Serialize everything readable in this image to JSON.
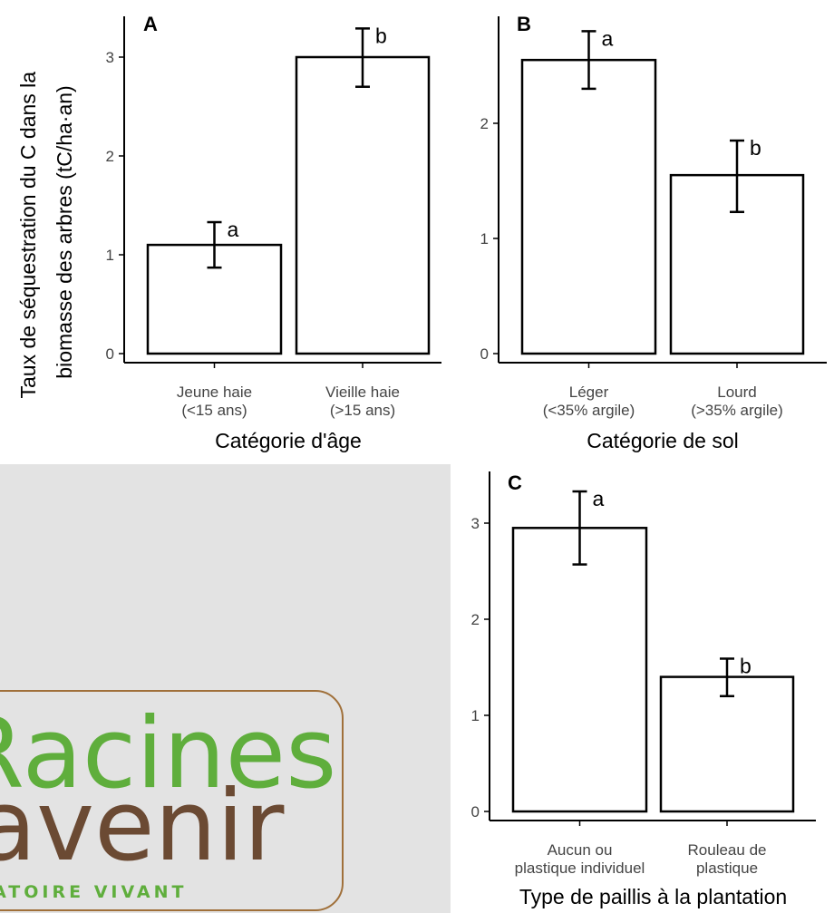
{
  "y_axis_title_lines": [
    "Taux de séquestration du C dans la",
    "biomasse des arbres (tC/ha·an)"
  ],
  "chart_data": [
    {
      "panel": "A",
      "type": "bar",
      "categories": [
        [
          "Jeune haie",
          "(<15 ans)"
        ],
        [
          "Vieille haie",
          "(>15 ans)"
        ]
      ],
      "values": [
        1.1,
        3.0
      ],
      "error_low": [
        0.87,
        2.7
      ],
      "error_high": [
        1.33,
        3.29
      ],
      "significance": [
        "a",
        "b"
      ],
      "xlabel": "Catégorie d'âge",
      "ylim": [
        0,
        3.3
      ],
      "yticks": [
        0,
        1,
        2,
        3
      ],
      "grid": false
    },
    {
      "panel": "B",
      "type": "bar",
      "categories": [
        [
          "Léger",
          "(<35% argile)"
        ],
        [
          "Lourd",
          "(>35% argile)"
        ]
      ],
      "values": [
        2.55,
        1.55
      ],
      "error_low": [
        2.3,
        1.23
      ],
      "error_high": [
        2.8,
        1.85
      ],
      "significance": [
        "a",
        "b"
      ],
      "xlabel": "Catégorie de sol",
      "ylim": [
        0,
        2.8
      ],
      "yticks": [
        0,
        1,
        2
      ],
      "grid": false
    },
    {
      "panel": "C",
      "type": "bar",
      "categories": [
        [
          "Aucun ou",
          "plastique individuel"
        ],
        [
          "Rouleau de",
          "plastique"
        ]
      ],
      "values": [
        2.95,
        1.4
      ],
      "error_low": [
        2.57,
        1.2
      ],
      "error_high": [
        3.33,
        1.59
      ],
      "significance": [
        "a",
        "b"
      ],
      "xlabel": "Type de paillis à la plantation",
      "ylim": [
        0,
        3.4
      ],
      "yticks": [
        0,
        1,
        2,
        3
      ],
      "grid": false
    }
  ],
  "logo": {
    "line1": "Racines",
    "line2": "avenir",
    "tagline": "LABORATOIRE VIVANT",
    "brand_green": "#5fae3c",
    "brand_brown": "#6b4a33"
  }
}
